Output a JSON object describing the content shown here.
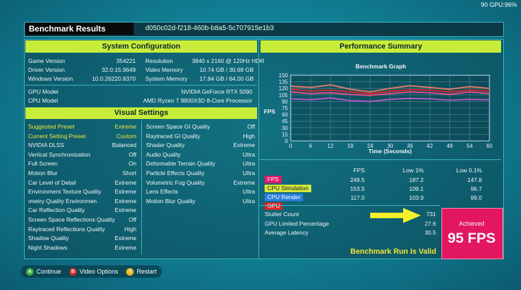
{
  "status_overlay": "90 GPU:96%",
  "header": {
    "title": "Benchmark Results",
    "run_id": "d050c02d-f218-460b-b8a5-5c707915e1b3"
  },
  "system_config": {
    "title": "System Configuration",
    "left": [
      {
        "label": "Game Version",
        "value": "354221"
      },
      {
        "label": "Driver Version",
        "value": "32.0.15.9649"
      },
      {
        "label": "Windows Version",
        "value": "10.0.26220.8370"
      }
    ],
    "right": [
      {
        "label": "Resolution",
        "value": "3840 x 2160 @ 120Hz HDR"
      },
      {
        "label": "Video Memory",
        "value": "10.74 GB / 30.68 GB"
      },
      {
        "label": "System Memory",
        "value": "17.84 GB / 64.00 GB"
      }
    ],
    "gpu_label": "GPU Model",
    "gpu_value": "NVIDIA GeForce RTX 5090",
    "cpu_label": "CPU Model",
    "cpu_value": "AMD Ryzen 7 9800X3D 8-Core Processor"
  },
  "visual_settings": {
    "title": "Visual Settings",
    "left": [
      {
        "label": "Suggested Preset",
        "value": "Extreme",
        "highlight": true
      },
      {
        "label": "Current Setting Preset",
        "value": "Custom",
        "highlight": true
      },
      {
        "label": "NVIDIA DLSS",
        "value": "Balanced"
      },
      {
        "label": "Vertical Synchronization",
        "value": "Off"
      },
      {
        "label": "Full Screen",
        "value": "On"
      },
      {
        "label": "Motion Blur",
        "value": "Short"
      },
      {
        "label": "Car Level of Detail",
        "value": "Extreme"
      },
      {
        "label": "Environment Texture Quality",
        "value": "Extreme"
      },
      {
        "label": "ımetry Quality     Environmen",
        "value": "Extreme"
      },
      {
        "label": "Car Reflection Quality",
        "value": "Extreme"
      },
      {
        "label": "Screen Space Reflections Quality",
        "value": "Off"
      },
      {
        "label": "Raytraced Reflections Quality",
        "value": "High"
      },
      {
        "label": "Shadow Quality",
        "value": "Extreme"
      },
      {
        "label": "Night Shadows",
        "value": "Extreme"
      }
    ],
    "right": [
      {
        "label": "Screen Space GI Quality",
        "value": "Off"
      },
      {
        "label": "Raytraced GI Quality",
        "value": "High"
      },
      {
        "label": "Shader Quality",
        "value": "Extreme"
      },
      {
        "label": "Audio Quality",
        "value": "Ultra"
      },
      {
        "label": "Deformable Terrain Quality",
        "value": "Ultra"
      },
      {
        "label": "Particle Effects Quality",
        "value": "Ultra"
      },
      {
        "label": "Volumetric Fog Quality",
        "value": "Extreme"
      },
      {
        "label": "Lens Effects",
        "value": "Ultra"
      },
      {
        "label": "Motion Blur Quality",
        "value": "Ultra"
      }
    ]
  },
  "performance": {
    "title": "Performance Summary",
    "graph_title": "Benchmark Graph",
    "table_headers": [
      "FPS",
      "Low 1%",
      "Low 0.1%"
    ],
    "rows": [
      {
        "name": "FPS",
        "color": "#e0196b",
        "text_color": "#ffffff",
        "values": [
          "249.5",
          "187.2",
          "147.8"
        ]
      },
      {
        "name": "CPU Simulation",
        "color": "#d6e83a",
        "text_color": "#102030",
        "values": [
          "153.5",
          "109.1",
          "96.7"
        ]
      },
      {
        "name": "CPU Render",
        "color": "#2a7fe0",
        "text_color": "#ffffff",
        "values": [
          "117.0",
          "103.9",
          "99.0"
        ]
      },
      {
        "name": "GPU",
        "color": "#d8262a",
        "text_color": "#ffffff",
        "values": [
          "",
          "",
          ""
        ]
      }
    ],
    "stutter_label": "Stutter Count",
    "stutter_value": "731",
    "gpu_limited_label": "GPU Limited Percentage",
    "gpu_limited_value": "27.6",
    "latency_label": "Average Latency",
    "latency_value": "30.5",
    "valid_text": "Benchmark Run Is Valid",
    "achieved_label": "Achieved",
    "achieved_value": "95 FPS"
  },
  "footer": {
    "buttons": [
      {
        "key": "A",
        "label": "Continue",
        "color": "#3cb043"
      },
      {
        "key": "B",
        "label": "Video Options",
        "color": "#d62b2b"
      },
      {
        "key": "Y",
        "label": "Restart",
        "color": "#e8b820"
      }
    ]
  },
  "chart_data": {
    "type": "line",
    "title": "Benchmark Graph",
    "xlabel": "Time (Seconds)",
    "ylabel": "FPS",
    "xlim": [
      0,
      60
    ],
    "ylim": [
      0,
      150
    ],
    "x_ticks": [
      0,
      6,
      12,
      18,
      24,
      30,
      36,
      42,
      48,
      54,
      60
    ],
    "y_ticks": [
      0,
      15,
      30,
      45,
      60,
      75,
      90,
      105,
      120,
      135,
      150
    ],
    "grid": true,
    "series": [
      {
        "name": "FPS",
        "color": "#e84a8a",
        "values": [
          112,
          108,
          110,
          106,
          104,
          108,
          112,
          110,
          106,
          112,
          108
        ]
      },
      {
        "name": "CPU Simulation",
        "color": "#e07a6a",
        "values": [
          125,
          122,
          128,
          118,
          112,
          120,
          126,
          122,
          118,
          124,
          120
        ]
      },
      {
        "name": "GPU",
        "color": "#d8262a",
        "values": [
          118,
          114,
          116,
          112,
          108,
          113,
          117,
          116,
          112,
          116,
          114
        ]
      },
      {
        "name": "CPU Render",
        "color": "#b05ac0",
        "values": [
          96,
          94,
          98,
          92,
          90,
          95,
          97,
          96,
          93,
          95,
          94
        ]
      }
    ]
  }
}
